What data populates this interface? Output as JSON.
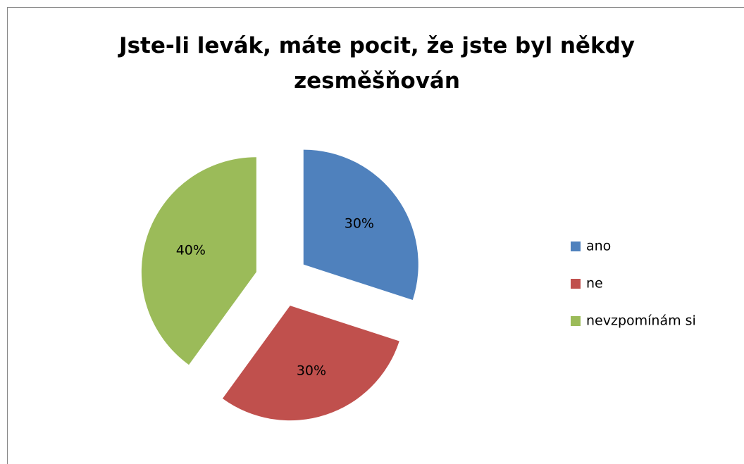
{
  "chart_data": {
    "type": "pie",
    "title": "Jste-li levák, máte pocit, že jste byl někdy zesměšňován",
    "categories": [
      "ano",
      "ne",
      "nevzpomínám si"
    ],
    "values": [
      30,
      30,
      40
    ],
    "value_labels": [
      "30%",
      "30%",
      "40%"
    ],
    "colors": [
      "#4f81bd",
      "#c0504d",
      "#9bbb59"
    ],
    "legend": "right"
  }
}
